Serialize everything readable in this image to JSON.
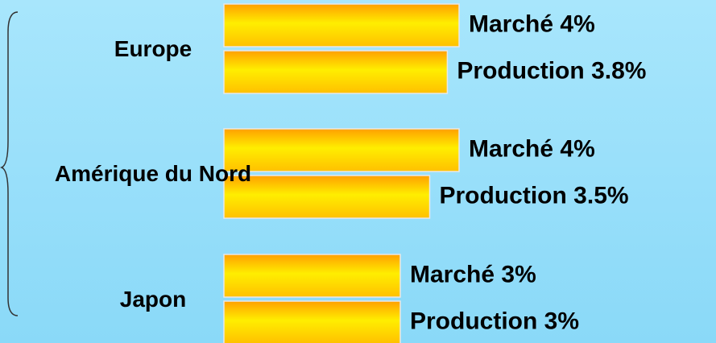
{
  "chart_data": {
    "type": "bar",
    "categories": [
      "Europe",
      "Amérique du Nord",
      "Japon"
    ],
    "series": [
      {
        "name": "Marché",
        "color": "#ffee00",
        "values": [
          4,
          4,
          3
        ],
        "value_labels": [
          "4%",
          "4%",
          "3%"
        ]
      },
      {
        "name": "Production",
        "color": "#ffee00",
        "values": [
          3.8,
          3.5,
          3
        ],
        "value_labels": [
          "3.8%",
          "3.5%",
          "3%"
        ]
      }
    ]
  }
}
